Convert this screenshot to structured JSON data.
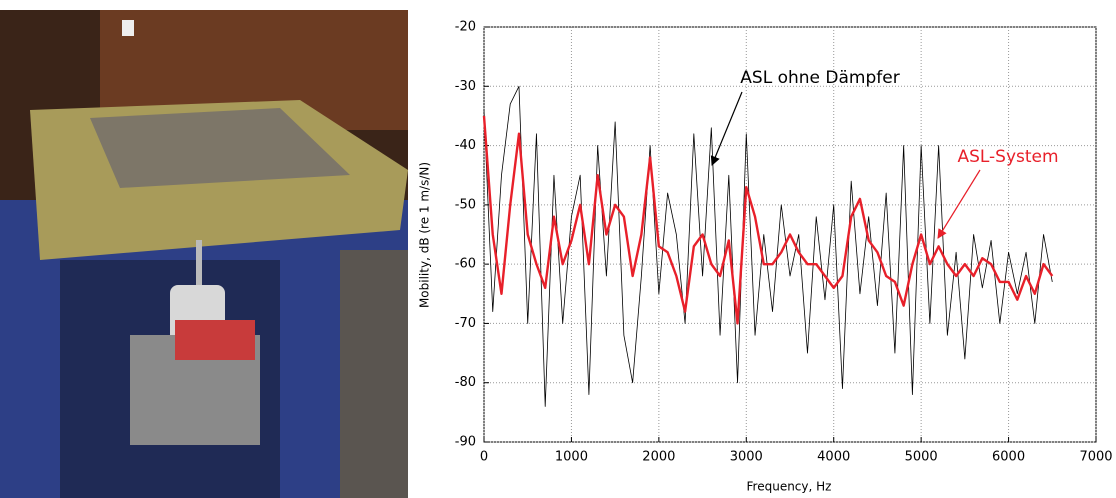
{
  "chart_data": {
    "type": "line",
    "xlabel": "Frequency, Hz",
    "ylabel": "Mobility, dB (re 1 m/s/N)",
    "x": [
      0,
      100,
      200,
      300,
      400,
      500,
      600,
      700,
      800,
      900,
      1000,
      1100,
      1200,
      1300,
      1400,
      1500,
      1600,
      1700,
      1800,
      1900,
      2000,
      2100,
      2200,
      2300,
      2400,
      2500,
      2600,
      2700,
      2800,
      2900,
      3000,
      3100,
      3200,
      3300,
      3400,
      3500,
      3600,
      3700,
      3800,
      3900,
      4000,
      4100,
      4200,
      4300,
      4400,
      4500,
      4600,
      4700,
      4800,
      4900,
      5000,
      5100,
      5200,
      5300,
      5400,
      5500,
      5600,
      5700,
      5800,
      5900,
      6000,
      6100,
      6200,
      6300,
      6400,
      6500
    ],
    "series": [
      {
        "name": "ASL ohne Dämpfer",
        "color": "#000000",
        "values": [
          -34,
          -68,
          -45,
          -33,
          -30,
          -70,
          -38,
          -84,
          -45,
          -70,
          -52,
          -45,
          -82,
          -40,
          -62,
          -36,
          -72,
          -80,
          -62,
          -40,
          -65,
          -48,
          -55,
          -70,
          -38,
          -62,
          -37,
          -72,
          -45,
          -80,
          -38,
          -72,
          -55,
          -68,
          -50,
          -62,
          -55,
          -75,
          -52,
          -66,
          -50,
          -81,
          -46,
          -65,
          -52,
          -67,
          -48,
          -75,
          -40,
          -82,
          -40,
          -70,
          -40,
          -72,
          -58,
          -76,
          -55,
          -64,
          -56,
          -70,
          -58,
          -65,
          -58,
          -70,
          -55,
          -63
        ]
      },
      {
        "name": "ASL-System",
        "color": "#e8202a",
        "values": [
          -35,
          -55,
          -65,
          -50,
          -38,
          -55,
          -60,
          -64,
          -52,
          -60,
          -56,
          -50,
          -60,
          -45,
          -55,
          -50,
          -52,
          -62,
          -55,
          -42,
          -57,
          -58,
          -62,
          -68,
          -57,
          -55,
          -60,
          -62,
          -56,
          -70,
          -47,
          -52,
          -60,
          -60,
          -58,
          -55,
          -58,
          -60,
          -60,
          -62,
          -64,
          -62,
          -52,
          -49,
          -56,
          -58,
          -62,
          -63,
          -67,
          -60,
          -55,
          -60,
          -57,
          -60,
          -62,
          -60,
          -62,
          -59,
          -60,
          -63,
          -63,
          -66,
          -62,
          -65,
          -60,
          -62
        ]
      }
    ],
    "xlim": [
      0,
      7000
    ],
    "xticks": [
      0,
      1000,
      2000,
      3000,
      4000,
      5000,
      6000,
      7000
    ],
    "ylim": [
      -90,
      -20
    ],
    "yticks": [
      -90,
      -80,
      -70,
      -60,
      -50,
      -40,
      -30,
      -20
    ],
    "grid": true
  }
}
